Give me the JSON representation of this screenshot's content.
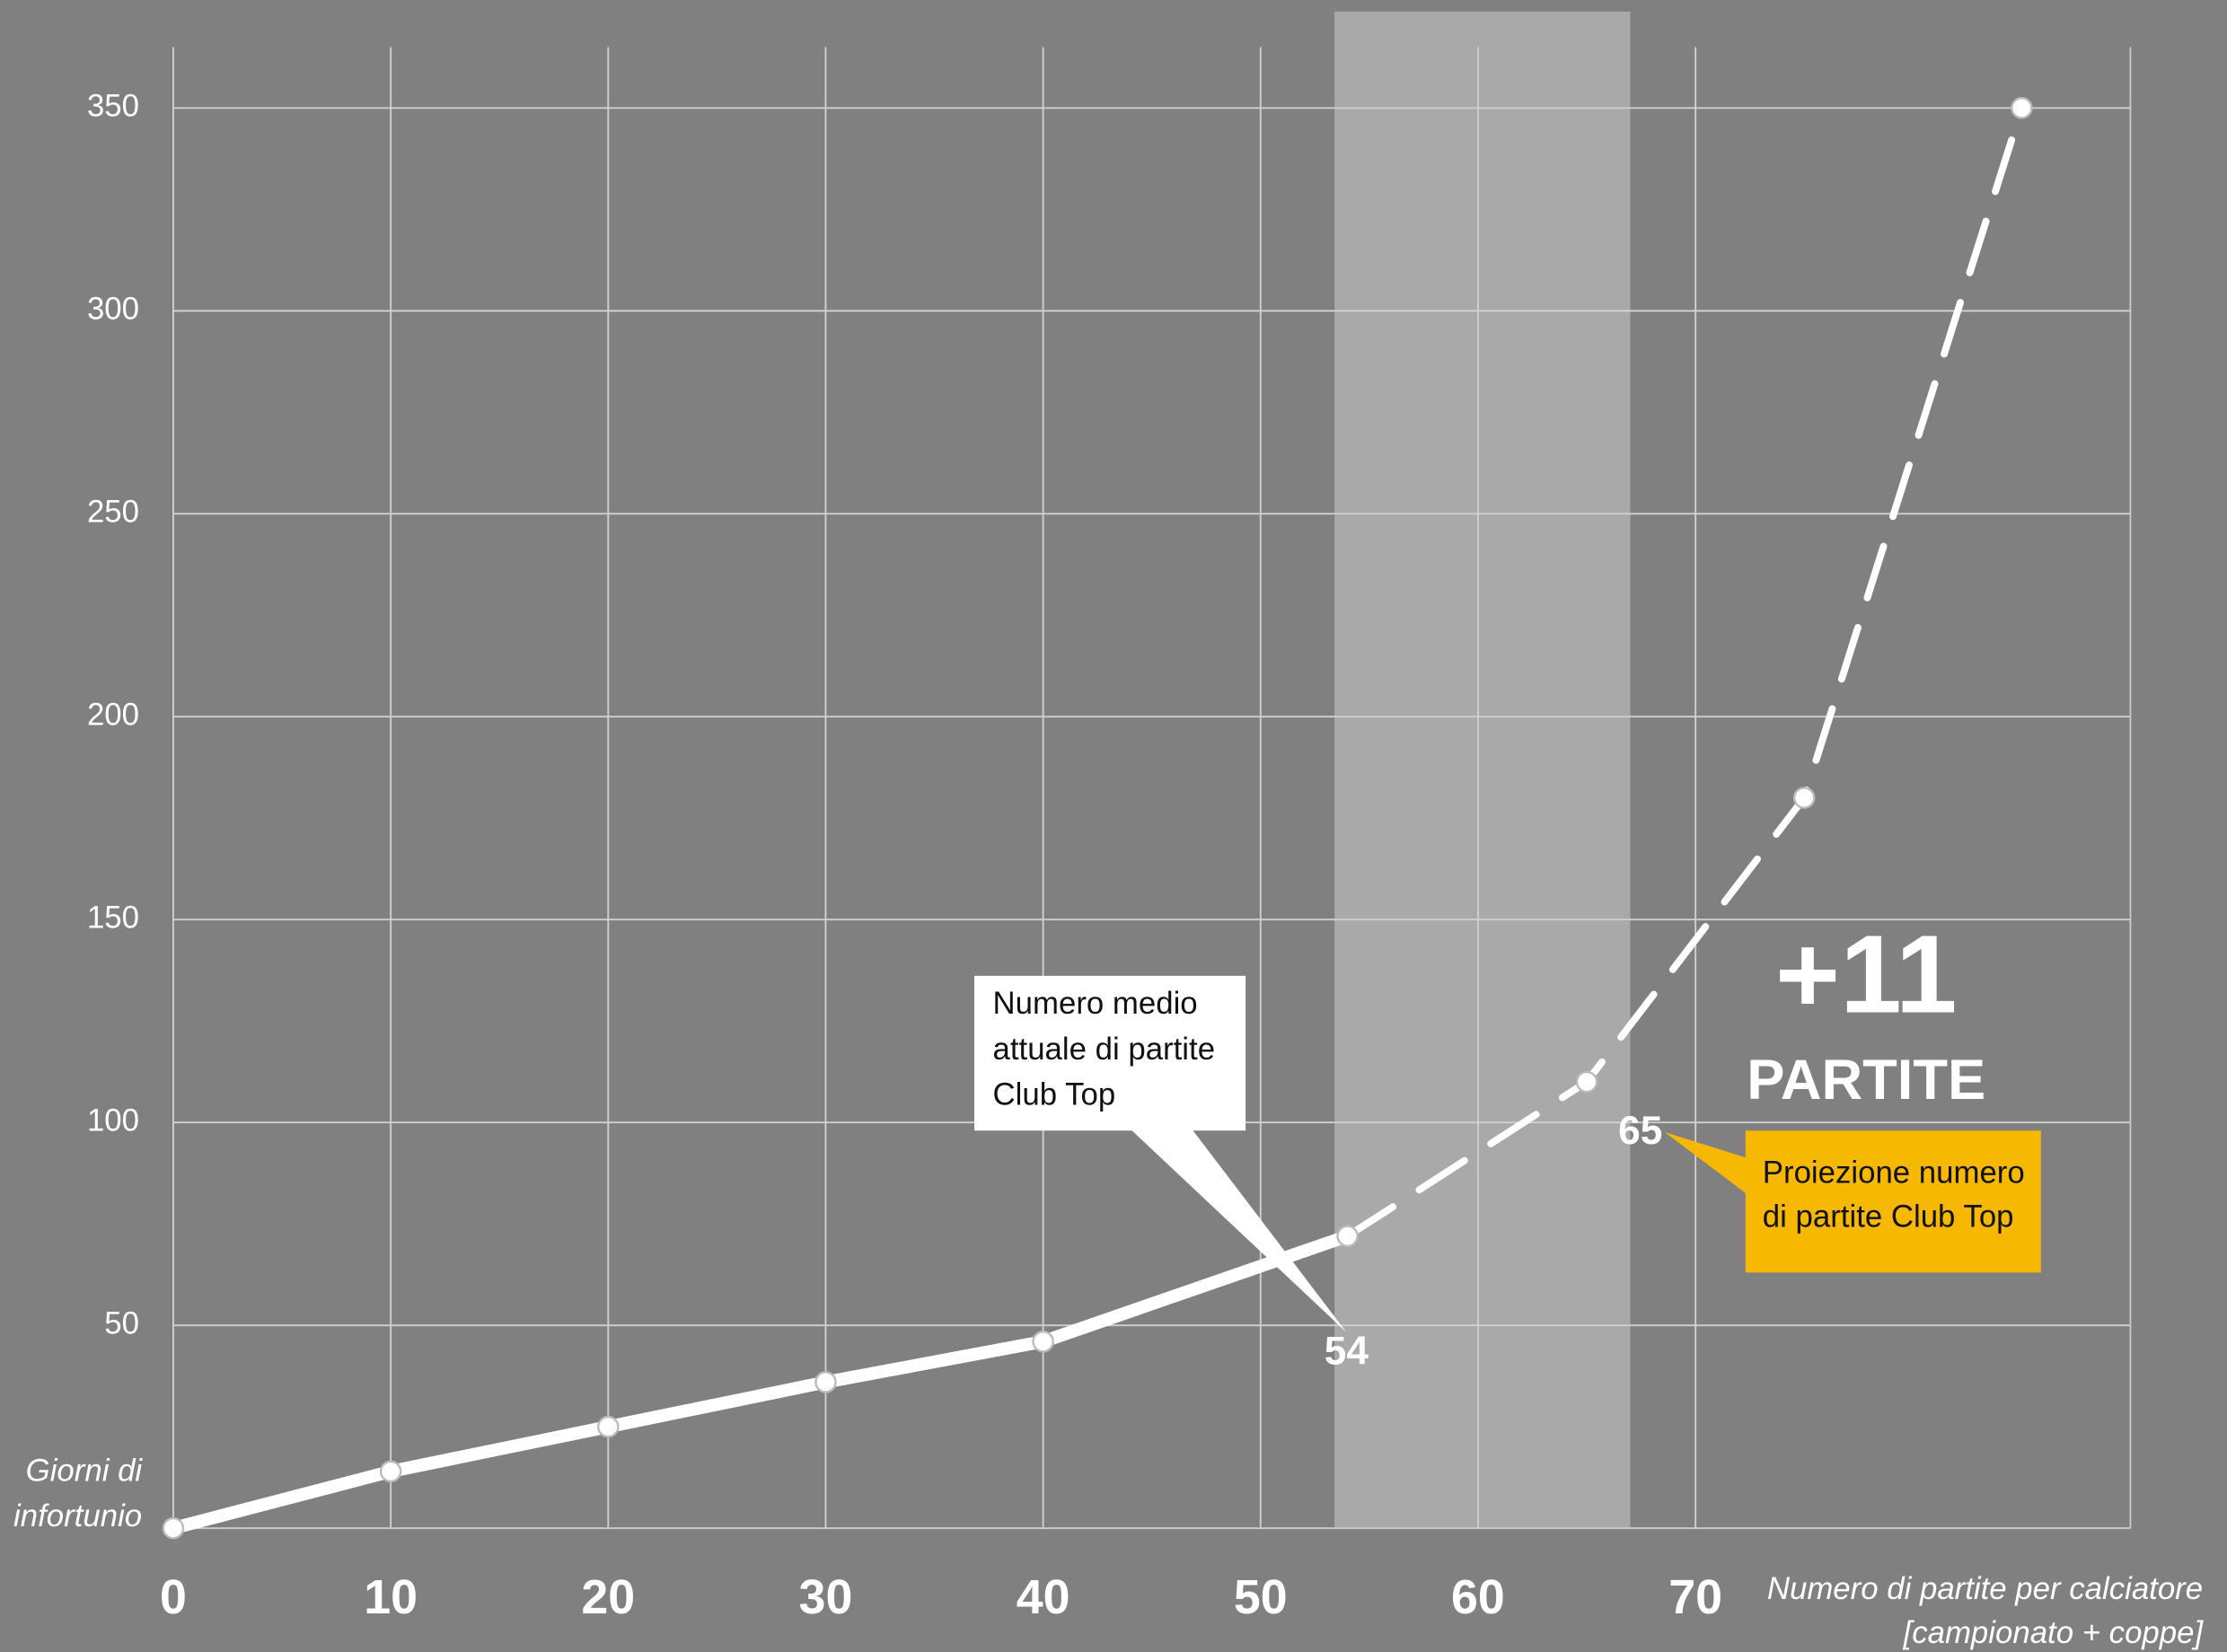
{
  "chart_data": {
    "type": "line",
    "x_label": [
      "Numero di partite per calciatore",
      "[campionato + coppe]"
    ],
    "y_label": [
      "Giorni di",
      "infortunio"
    ],
    "x": [
      0,
      10,
      20,
      30,
      40,
      54,
      65,
      75,
      85
    ],
    "series": [
      {
        "color": "#ffffff",
        "style": "solid",
        "values": [
          0,
          14,
          25,
          36,
          46,
          72,
          null,
          null,
          null
        ]
      },
      {
        "color": "#ffffff",
        "style": "dashed",
        "values": [
          null,
          null,
          null,
          null,
          null,
          72,
          110,
          180,
          350
        ]
      }
    ],
    "xlim": [
      0,
      90
    ],
    "ylim": [
      0,
      365
    ],
    "xticks": [
      0,
      10,
      20,
      30,
      40,
      50,
      60,
      70
    ],
    "yticks": [
      50,
      100,
      150,
      200,
      250,
      300,
      350
    ],
    "grid": true,
    "highlight_range": [
      53.4,
      67
    ],
    "annotations": {
      "current": {
        "text": [
          "Numero medio",
          "attuale di partite",
          "Club Top"
        ],
        "point": "54"
      },
      "projection": {
        "text": [
          "Proiezione numero",
          "di partite Club Top"
        ],
        "point": "65"
      },
      "delta": {
        "big": "+11",
        "small": "PARTITE"
      }
    }
  }
}
